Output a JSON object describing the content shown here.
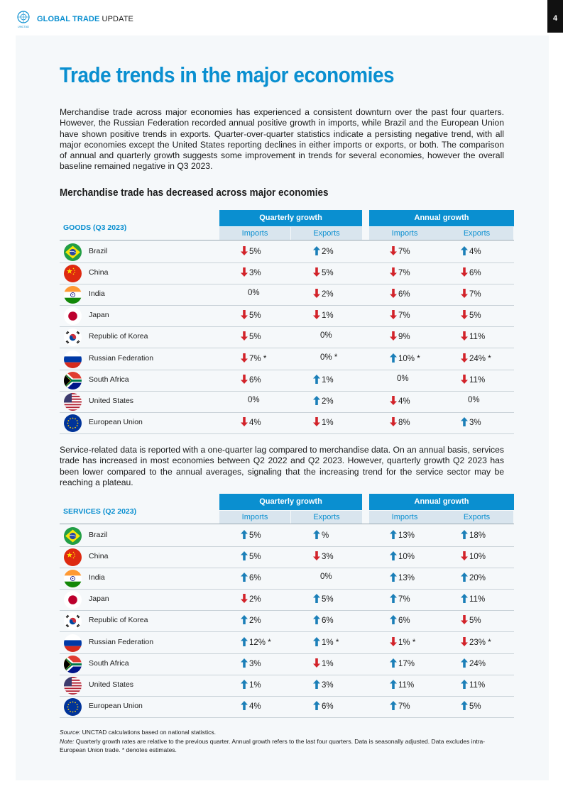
{
  "header": {
    "brand_bold": "GLOBAL TRADE",
    "brand_rest": "UPDATE",
    "page_number": "4",
    "logo_text": "UNCTAD"
  },
  "title": "Trade trends in the major economies",
  "paragraph1": "Merchandise trade across major economies has experienced a consistent downturn over the past four quarters. However, the Russian Federation recorded annual positive growth in imports, while Brazil and the European Union have shown positive trends in exports. Quarter-over-quarter statistics indicate a persisting negative trend, with all major economies except the United States reporting declines in either imports or exports, or both. The comparison of annual and quarterly growth suggests some improvement in trends for several economies, however the overall baseline remained negative in Q3 2023.",
  "subheading": "Merchandise trade has decreased across major economies",
  "paragraph2": "Service-related data is reported with a one-quarter lag compared to merchandise data. On an annual basis, services trade has increased in most economies between Q2 2022 and Q2 2023. However, quarterly growth Q2 2023 has been lower compared to the annual averages, signaling that the increasing trend for the service sector may be reaching a plateau.",
  "colors": {
    "accent": "#0a8fd0",
    "up": "#1b7fb8",
    "down": "#d2232a"
  },
  "goods": {
    "title": "GOODS (Q3 2023)",
    "group_quarterly": "Quarterly growth",
    "group_annual": "Annual growth",
    "col_imports": "Imports",
    "col_exports": "Exports",
    "rows": [
      {
        "country": "Brazil",
        "flag": "brazil-flag-icon",
        "cells": [
          {
            "v": "5%",
            "d": "down"
          },
          {
            "v": "2%",
            "d": "up"
          },
          {
            "v": "7%",
            "d": "down"
          },
          {
            "v": "4%",
            "d": "up"
          }
        ]
      },
      {
        "country": "China",
        "flag": "china-flag-icon",
        "cells": [
          {
            "v": "3%",
            "d": "down"
          },
          {
            "v": "5%",
            "d": "down"
          },
          {
            "v": "7%",
            "d": "down"
          },
          {
            "v": "6%",
            "d": "down"
          }
        ]
      },
      {
        "country": "India",
        "flag": "india-flag-icon",
        "cells": [
          {
            "v": "0%",
            "d": "none"
          },
          {
            "v": "2%",
            "d": "down"
          },
          {
            "v": "6%",
            "d": "down"
          },
          {
            "v": "7%",
            "d": "down"
          }
        ]
      },
      {
        "country": "Japan",
        "flag": "japan-flag-icon",
        "cells": [
          {
            "v": "5%",
            "d": "down"
          },
          {
            "v": "1%",
            "d": "down"
          },
          {
            "v": "7%",
            "d": "down"
          },
          {
            "v": "5%",
            "d": "down"
          }
        ]
      },
      {
        "country": "Republic of Korea",
        "flag": "korea-flag-icon",
        "cells": [
          {
            "v": "5%",
            "d": "down"
          },
          {
            "v": "0%",
            "d": "none"
          },
          {
            "v": "9%",
            "d": "down"
          },
          {
            "v": "11%",
            "d": "down"
          }
        ]
      },
      {
        "country": "Russian Federation",
        "flag": "russia-flag-icon",
        "cells": [
          {
            "v": "7% *",
            "d": "down"
          },
          {
            "v": "0% *",
            "d": "none"
          },
          {
            "v": "10% *",
            "d": "up"
          },
          {
            "v": "24% *",
            "d": "down"
          }
        ]
      },
      {
        "country": "South Africa",
        "flag": "south-africa-flag-icon",
        "cells": [
          {
            "v": "6%",
            "d": "down"
          },
          {
            "v": "1%",
            "d": "up"
          },
          {
            "v": "0%",
            "d": "none"
          },
          {
            "v": "11%",
            "d": "down"
          }
        ]
      },
      {
        "country": "United States",
        "flag": "usa-flag-icon",
        "cells": [
          {
            "v": "0%",
            "d": "none"
          },
          {
            "v": "2%",
            "d": "up"
          },
          {
            "v": "4%",
            "d": "down"
          },
          {
            "v": "0%",
            "d": "none"
          }
        ]
      },
      {
        "country": "European Union",
        "flag": "eu-flag-icon",
        "cells": [
          {
            "v": "4%",
            "d": "down"
          },
          {
            "v": "1%",
            "d": "down"
          },
          {
            "v": "8%",
            "d": "down"
          },
          {
            "v": "3%",
            "d": "up"
          }
        ]
      }
    ]
  },
  "services": {
    "title": "SERVICES (Q2 2023)",
    "group_quarterly": "Quarterly growth",
    "group_annual": "Annual growth",
    "col_imports": "Imports",
    "col_exports": "Exports",
    "rows": [
      {
        "country": "Brazil",
        "flag": "brazil-flag-icon",
        "cells": [
          {
            "v": "5%",
            "d": "up"
          },
          {
            "v": "%",
            "d": "up"
          },
          {
            "v": "13%",
            "d": "up"
          },
          {
            "v": "18%",
            "d": "up"
          }
        ]
      },
      {
        "country": "China",
        "flag": "china-flag-icon",
        "cells": [
          {
            "v": "5%",
            "d": "up"
          },
          {
            "v": "3%",
            "d": "down"
          },
          {
            "v": "10%",
            "d": "up"
          },
          {
            "v": "10%",
            "d": "down"
          }
        ]
      },
      {
        "country": "India",
        "flag": "india-flag-icon",
        "cells": [
          {
            "v": "6%",
            "d": "up"
          },
          {
            "v": "0%",
            "d": "none"
          },
          {
            "v": "13%",
            "d": "up"
          },
          {
            "v": "20%",
            "d": "up"
          }
        ]
      },
      {
        "country": "Japan",
        "flag": "japan-flag-icon",
        "cells": [
          {
            "v": "2%",
            "d": "down"
          },
          {
            "v": "5%",
            "d": "up"
          },
          {
            "v": "7%",
            "d": "up"
          },
          {
            "v": "11%",
            "d": "up"
          }
        ]
      },
      {
        "country": "Republic of Korea",
        "flag": "korea-flag-icon",
        "cells": [
          {
            "v": "2%",
            "d": "up"
          },
          {
            "v": "6%",
            "d": "up"
          },
          {
            "v": "6%",
            "d": "up"
          },
          {
            "v": "5%",
            "d": "down"
          }
        ]
      },
      {
        "country": "Russian Federation",
        "flag": "russia-flag-icon",
        "cells": [
          {
            "v": "12% *",
            "d": "up"
          },
          {
            "v": "1% *",
            "d": "up"
          },
          {
            "v": "1% *",
            "d": "down"
          },
          {
            "v": "23% *",
            "d": "down"
          }
        ]
      },
      {
        "country": "South Africa",
        "flag": "south-africa-flag-icon",
        "cells": [
          {
            "v": "3%",
            "d": "up"
          },
          {
            "v": "1%",
            "d": "down"
          },
          {
            "v": "17%",
            "d": "up"
          },
          {
            "v": "24%",
            "d": "up"
          }
        ]
      },
      {
        "country": "United States",
        "flag": "usa-flag-icon",
        "cells": [
          {
            "v": "1%",
            "d": "up"
          },
          {
            "v": "3%",
            "d": "up"
          },
          {
            "v": "11%",
            "d": "up"
          },
          {
            "v": "11%",
            "d": "up"
          }
        ]
      },
      {
        "country": "European Union",
        "flag": "eu-flag-icon",
        "cells": [
          {
            "v": "4%",
            "d": "up"
          },
          {
            "v": "6%",
            "d": "up"
          },
          {
            "v": "7%",
            "d": "up"
          },
          {
            "v": "5%",
            "d": "up"
          }
        ]
      }
    ]
  },
  "footnote": {
    "source_label": "Source:",
    "source_text": " UNCTAD calculations based on national statistics.",
    "note_label": "Note:",
    "note_text": " Quarterly growth rates are relative to the previous quarter. Annual growth refers to the last four quarters. Data is seasonally adjusted. Data excludes intra-European Union trade. * denotes estimates."
  }
}
